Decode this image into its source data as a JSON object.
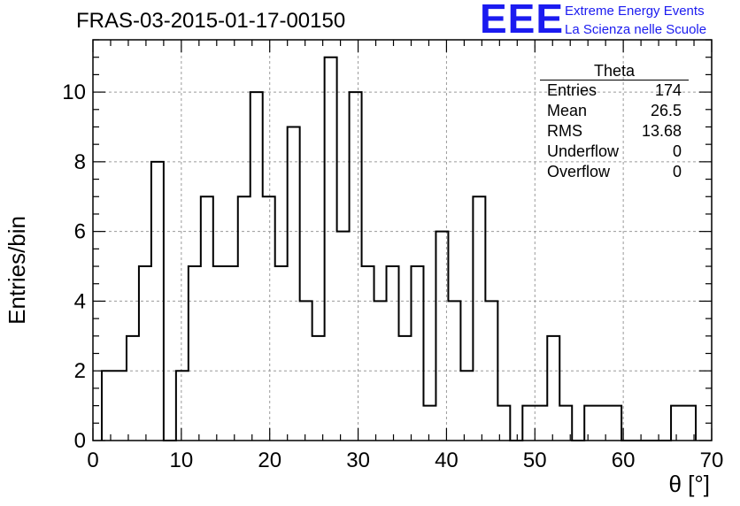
{
  "header": {
    "title": "FRAS-03-2015-01-17-00150"
  },
  "logo": {
    "mark": "EEE",
    "line1": "Extreme Energy Events",
    "line2": "La Scienza nelle Scuole",
    "color": "#1b1bf0"
  },
  "stats_box": {
    "title": "Theta",
    "rows": [
      {
        "key": "Entries",
        "value": "174"
      },
      {
        "key": "Mean",
        "value": "26.5"
      },
      {
        "key": "RMS",
        "value": "13.68"
      },
      {
        "key": "Underflow",
        "value": "0"
      },
      {
        "key": "Overflow",
        "value": "0"
      }
    ]
  },
  "chart_data": {
    "type": "bar",
    "style": "step-histogram",
    "title": "FRAS-03-2015-01-17-00150",
    "xlabel": "θ [°]",
    "ylabel": "Entries/bin",
    "xlim": [
      0,
      70
    ],
    "ylim": [
      0,
      11.5
    ],
    "bin_width": 1.4,
    "bin_edges_start": 1.0,
    "x_ticks": [
      0,
      10,
      20,
      30,
      40,
      50,
      60,
      70
    ],
    "y_ticks": [
      0,
      2,
      4,
      6,
      8,
      10
    ],
    "grid": true,
    "line_color": "#000000",
    "values": [
      2,
      2,
      3,
      5,
      8,
      0,
      2,
      5,
      7,
      5,
      5,
      7,
      10,
      7,
      5,
      9,
      4,
      3,
      11,
      6,
      10,
      5,
      4,
      5,
      3,
      5,
      1,
      6,
      4,
      2,
      7,
      4,
      1,
      0,
      1,
      1,
      3,
      1,
      0,
      1,
      1,
      1,
      0,
      0,
      0,
      0,
      1,
      1
    ]
  }
}
